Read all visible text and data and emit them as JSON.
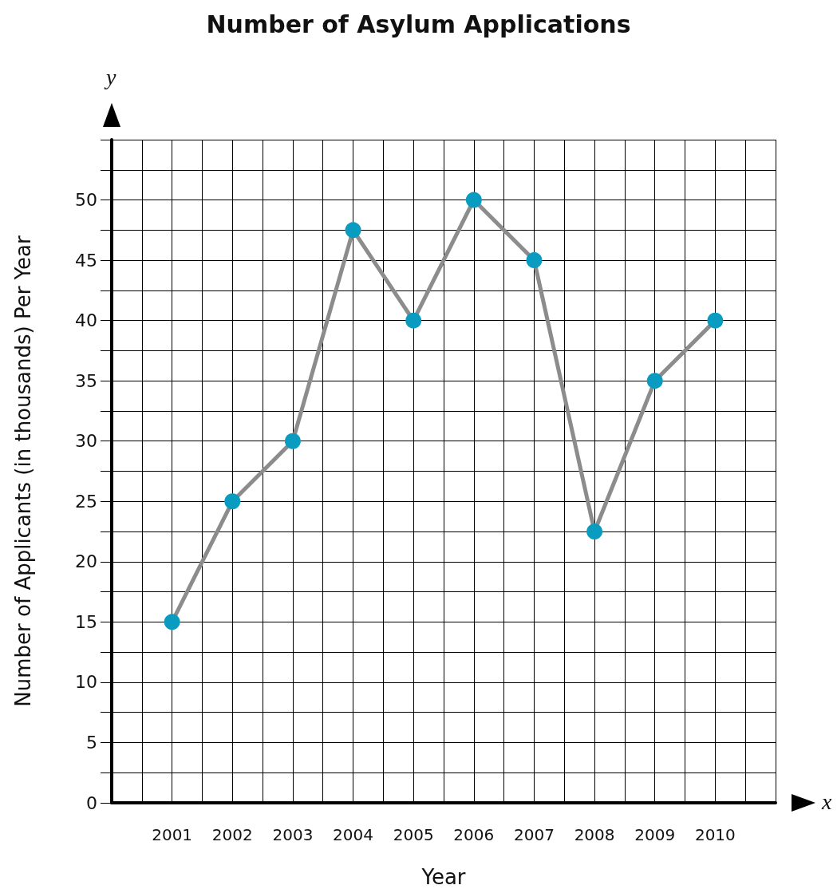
{
  "chart_data": {
    "type": "line",
    "title": "Number of Asylum Applications",
    "xlabel": "Year",
    "ylabel": "Number of Applicants (in thousands) Per Year",
    "annotations": [
      "y",
      "x"
    ],
    "x": [
      2001,
      2002,
      2003,
      2004,
      2005,
      2006,
      2007,
      2008,
      2009,
      2010
    ],
    "series": [
      {
        "color": "#8c8c8c",
        "colors": [
          "#0a9bc0",
          "#0a9bc0",
          "#0a9bc0",
          "#0a9bc0",
          "#0a9bc0",
          "#0a9bc0",
          "#0a9bc0",
          "#0a9bc0",
          "#0a9bc0",
          "#0a9bc0"
        ],
        "values": [
          15,
          25,
          30,
          47.5,
          40,
          50,
          45,
          22.5,
          35,
          40
        ]
      }
    ],
    "xlim": [
      2000,
      2011
    ],
    "xticks": [
      {
        "value": 2000.5,
        "label": null
      },
      2001,
      {
        "value": 2001.5,
        "label": null
      },
      2002,
      {
        "value": 2002.5,
        "label": null
      },
      2003,
      {
        "value": 2003.5,
        "label": null
      },
      2004,
      {
        "value": 2004.5,
        "label": null
      },
      2005,
      {
        "value": 2005.5,
        "label": null
      },
      2006,
      {
        "value": 2006.5,
        "label": null
      },
      2007,
      {
        "value": 2007.5,
        "label": null
      },
      2008,
      {
        "value": 2008.5,
        "label": null
      },
      2009,
      {
        "value": 2009.5,
        "label": null
      },
      2010,
      {
        "value": 2010.5,
        "label": null
      },
      {
        "value": 2011,
        "label": null
      }
    ],
    "ylim": [
      0,
      55
    ],
    "yticks": [
      0,
      {
        "value": 2.5,
        "label": null
      },
      5,
      {
        "value": 7.5,
        "label": null
      },
      10,
      {
        "value": 12.5,
        "label": null
      },
      15,
      {
        "value": 17.5,
        "label": null
      },
      20,
      {
        "value": 22.5,
        "label": null
      },
      25,
      {
        "value": 27.5,
        "label": null
      },
      30,
      {
        "value": 32.5,
        "label": null
      },
      35,
      {
        "value": 37.5,
        "label": null
      },
      40,
      {
        "value": 42.5,
        "label": null
      },
      45,
      {
        "value": 47.5,
        "label": null
      },
      50,
      {
        "value": 52.5,
        "label": null
      },
      {
        "value": 55,
        "label": null
      }
    ],
    "grid": true,
    "marker": "circle",
    "line_style": "solid"
  }
}
